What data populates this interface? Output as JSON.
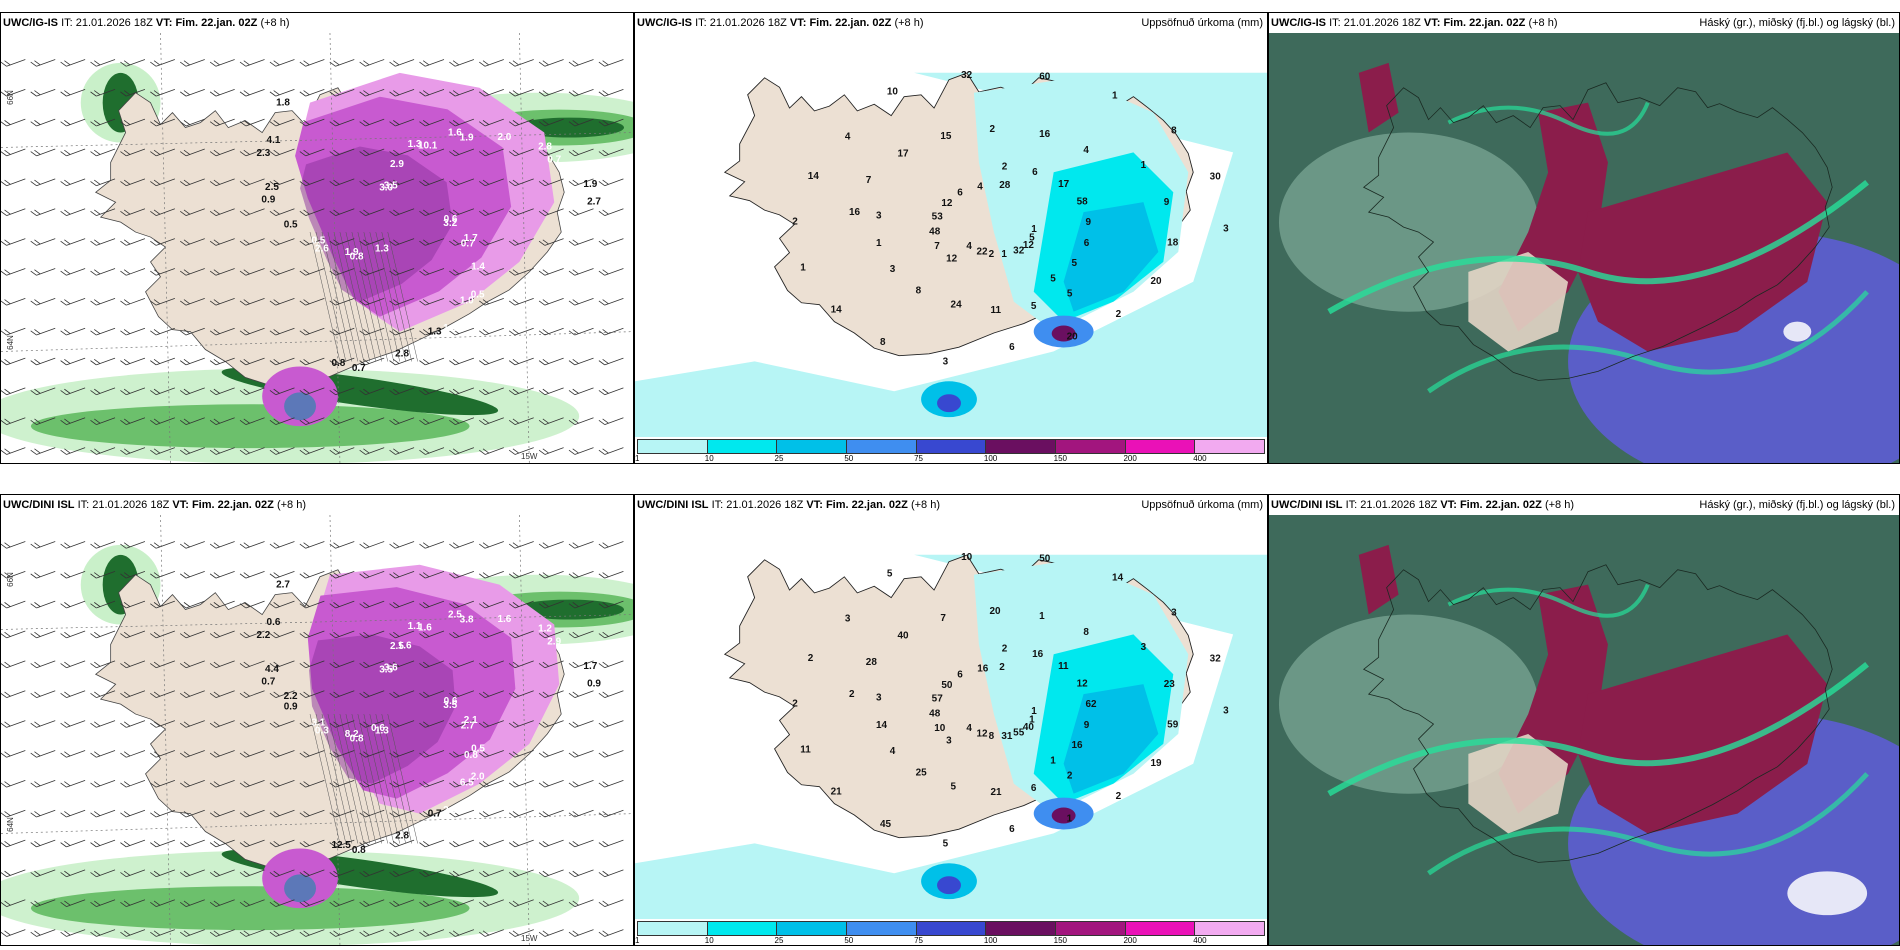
{
  "panels": [
    {
      "id": "tl",
      "model": "UWC/IG-IS",
      "it_label": "IT:",
      "it": "21.01.2026 18Z",
      "vt_label": "VT:",
      "vt": "Fim. 22.jan. 02Z",
      "lead": "(+8 h)",
      "product": "",
      "coords": {
        "lat_top": "66N",
        "lat_mid": "64N",
        "lon_bottom": "15W"
      },
      "labels": [
        "0.6",
        "0.8",
        "1.3",
        "0.5",
        "0.9",
        "2.8",
        "0.7",
        "3.0",
        "1.7",
        "2.6",
        "1.6",
        "1.5",
        "2.3",
        "1.9",
        "1.3",
        "2.9",
        "1.4",
        "0.5",
        "2.0",
        "2.8",
        "1.8",
        "3.2",
        "1.9",
        "10.1",
        "1.0",
        "2.5",
        "0.7",
        "0.8",
        "3.5",
        "0.7",
        "0.5",
        "1.9",
        "1.3",
        "4.1",
        "2.7"
      ]
    },
    {
      "id": "tm",
      "model": "UWC/IG-IS",
      "it_label": "IT:",
      "it": "21.01.2026 18Z",
      "vt_label": "VT:",
      "vt": "Fim. 22.jan. 02Z",
      "lead": "(+8 h)",
      "product": "Uppsöfnuð úrkoma (mm)",
      "labels": [
        "1",
        "12",
        "2",
        "5",
        "16",
        "1",
        "3",
        "10",
        "5",
        "7",
        "6",
        "5",
        "7",
        "9",
        "8",
        "32",
        "12",
        "48",
        "17",
        "11",
        "17",
        "18",
        "14",
        "60",
        "32",
        "53",
        "58",
        "24",
        "15",
        "20",
        "1",
        "1",
        "1",
        "12",
        "9",
        "8",
        "2",
        "2",
        "2",
        "8",
        "2",
        "6",
        "6",
        "3",
        "16",
        "20",
        "14",
        "30",
        "22",
        "4",
        "5",
        "1",
        "4",
        "6",
        "4",
        "3",
        "4",
        "28",
        "5",
        "3"
      ]
    },
    {
      "id": "tr",
      "model": "UWC/IG-IS",
      "it_label": "IT:",
      "it": "21.01.2026 18Z",
      "vt_label": "VT:",
      "vt": "Fim. 22.jan. 02Z",
      "lead": "(+8 h)",
      "product": "Háský (gr.), miðský (fj.bl.) og lágský (bl.)",
      "labels": []
    },
    {
      "id": "bl",
      "model": "UWC/DINI ISL",
      "it_label": "IT:",
      "it": "21.01.2026 18Z",
      "vt_label": "VT:",
      "vt": "Fim. 22.jan. 02Z",
      "lead": "(+8 h)",
      "product": "",
      "coords": {
        "lat_top": "66N",
        "lat_mid": "64N",
        "lon_bottom": "15W"
      },
      "labels": [
        "0.6",
        "0.8",
        "1.1",
        "2.0",
        "0.7",
        "1.2",
        "0.8",
        "3.5",
        "2.1",
        "0.3",
        "2.5",
        "2.6",
        "2.2",
        "1.7",
        "1.3",
        "2.5",
        "0.5",
        "0.9",
        "1.6",
        "2.8",
        "2.7",
        "3.5",
        "8.2",
        "1.6",
        "6.5",
        "4.4",
        "2.9",
        "12.5",
        "3.6",
        "2.7",
        "3.1",
        "3.8",
        "0.7",
        "0.6",
        "0.9",
        "0.6",
        "1.6",
        "0.8",
        "2.2"
      ]
    },
    {
      "id": "bm",
      "model": "UWC/DINI ISL",
      "it_label": "IT:",
      "it": "21.01.2026 18Z",
      "vt_label": "VT:",
      "vt": "Fim. 22.jan. 02Z",
      "lead": "(+8 h)",
      "product": "Uppsöfnuð úrkoma (mm)",
      "labels": [
        "1",
        "3",
        "2",
        "2",
        "2",
        "3",
        "5",
        "5",
        "1",
        "10",
        "16",
        "6",
        "28",
        "23",
        "45",
        "10",
        "40",
        "48",
        "11",
        "21",
        "40",
        "59",
        "21",
        "50",
        "55",
        "57",
        "12",
        "5",
        "7",
        "19",
        "11",
        "14",
        "31",
        "50",
        "62",
        "25",
        "20",
        "2",
        "2",
        "3",
        "8",
        "6",
        "9",
        "4",
        "1",
        "1",
        "2",
        "32",
        "12",
        "16",
        "16",
        "14",
        "8",
        "6",
        "3",
        "3",
        "4",
        "2",
        "1",
        "3"
      ]
    },
    {
      "id": "br",
      "model": "UWC/DINI ISL",
      "it_label": "IT:",
      "it": "21.01.2026 18Z",
      "vt_label": "VT:",
      "vt": "Fim. 22.jan. 02Z",
      "lead": "(+8 h)",
      "product": "Háský (gr.), miðský (fj.bl.) og lágský (bl.)",
      "labels": []
    }
  ],
  "legend": {
    "ticks": [
      "1",
      "10",
      "25",
      "50",
      "75",
      "100",
      "150",
      "200",
      "400"
    ],
    "colors": [
      "#b7f5f5",
      "#00e8ee",
      "#00c0e8",
      "#3f8ef0",
      "#3848d0",
      "#6a0f60",
      "#a2157e",
      "#ea11b7",
      "#f2aaf0"
    ]
  },
  "palette": {
    "land": "#ece0d3",
    "sea": "#ffffff",
    "precip_sea": "#b7f5f5",
    "green_light": "#c9f0c9",
    "green_mid": "#6cc06c",
    "green_dark": "#1f6e2e",
    "magenta_light": "#e89be8",
    "magenta_mid": "#c85ad0",
    "magenta_dark": "#8a2f9b",
    "cloud_base": "#3e6a5b",
    "cloud_high": "#8bb6a4",
    "cloud_mid": "#5a5ec8",
    "cloud_low": "#8b1d4b",
    "cloud_edge": "#27e09a"
  }
}
